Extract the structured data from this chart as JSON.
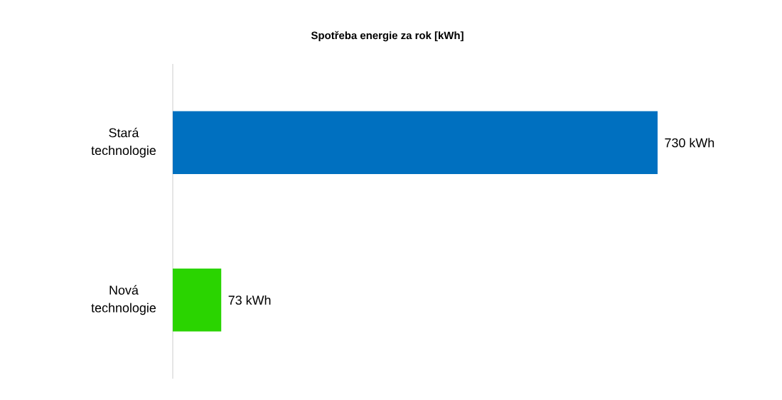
{
  "chart_data": {
    "type": "bar",
    "orientation": "horizontal",
    "title": "Spotřeba energie za rok [kWh]",
    "categories": [
      "Stará technologie",
      "Nová technologie"
    ],
    "values": [
      730,
      73
    ],
    "colors": [
      "#0070c0",
      "#2ad400"
    ],
    "value_labels": [
      "730 kWh",
      "73 kWh"
    ],
    "tick_labels": "y"
  }
}
